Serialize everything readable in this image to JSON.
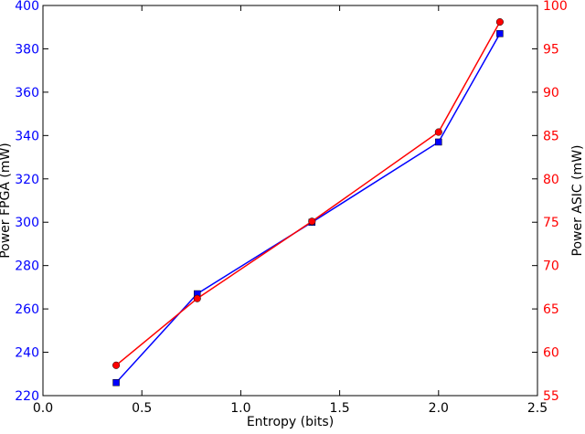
{
  "chart_data": {
    "type": "line",
    "title": "",
    "xlabel": "Entropy (bits)",
    "ylabel_left": "Power FPGA (mW)",
    "ylabel_right": "Power ASIC (mW)",
    "xlim": [
      0.0,
      2.5
    ],
    "ylim_left": [
      220,
      400
    ],
    "ylim_right": [
      55,
      100
    ],
    "x_ticks": [
      "0.0",
      "0.5",
      "1.0",
      "1.5",
      "2.0",
      "2.5"
    ],
    "y_left_ticks": [
      "220",
      "240",
      "260",
      "280",
      "300",
      "320",
      "340",
      "360",
      "380",
      "400"
    ],
    "y_right_ticks": [
      "55",
      "60",
      "65",
      "70",
      "75",
      "80",
      "85",
      "90",
      "95",
      "100"
    ],
    "grid": false,
    "legend": "none",
    "series": [
      {
        "axis": "left",
        "color": "#0000ff",
        "marker": "square",
        "x": [
          0.37,
          0.78,
          1.36,
          2.0,
          2.31
        ],
        "values": [
          226,
          267,
          300,
          337,
          387
        ]
      },
      {
        "axis": "right",
        "color": "#ff0000",
        "marker": "circle",
        "x": [
          0.37,
          0.78,
          1.36,
          2.0,
          2.31
        ],
        "values": [
          58.5,
          66.2,
          75.1,
          85.4,
          98.1
        ]
      }
    ],
    "colors": {
      "left_axis": "#0000ff",
      "right_axis": "#ff0000",
      "frame": "#000000"
    }
  }
}
